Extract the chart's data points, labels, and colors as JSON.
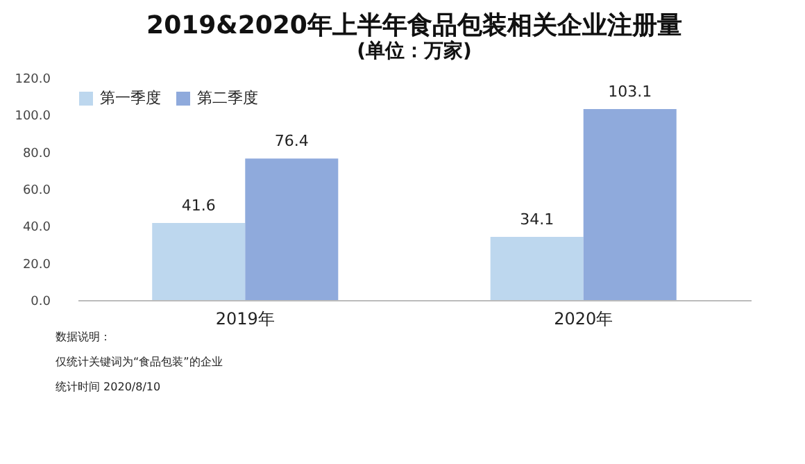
{
  "chart_data": {
    "type": "bar",
    "title": "2019&2020年上半年食品包装相关企业注册量",
    "subtitle": "(单位：万家)",
    "categories": [
      "2019年",
      "2020年"
    ],
    "series": [
      {
        "name": "第一季度",
        "color": "#bdd7ee",
        "values": [
          41.6,
          34.1
        ]
      },
      {
        "name": "第二季度",
        "color": "#8faadc",
        "values": [
          76.4,
          103.1
        ]
      }
    ],
    "ylim": [
      0,
      120
    ],
    "yticks": [
      {
        "value": 0,
        "label": "0.0"
      },
      {
        "value": 20,
        "label": "20.0"
      },
      {
        "value": 40,
        "label": "40.0"
      },
      {
        "value": 60,
        "label": "60.0"
      },
      {
        "value": 80,
        "label": "80.0"
      },
      {
        "value": 100,
        "label": "100.0"
      },
      {
        "value": 120,
        "label": "120.0"
      }
    ],
    "data_labels": true,
    "grid": false,
    "legend": "top",
    "annotations": [
      "数据说明：",
      "仅统计关键词为“食品包装”的企业",
      "统计时间 2020/8/10"
    ]
  }
}
